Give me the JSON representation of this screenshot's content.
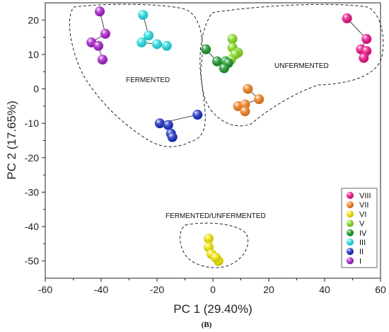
{
  "chart_data": {
    "type": "scatter",
    "xlabel": "PC 1 (29.40%)",
    "ylabel": "PC 2 (17.65%)",
    "xlim": [
      -60,
      60
    ],
    "ylim": [
      -55,
      25
    ],
    "x_ticks": [
      "-60",
      "-40",
      "-20",
      "0",
      "20",
      "40",
      "60"
    ],
    "y_ticks": [
      "20",
      "10",
      "0",
      "-10",
      "-20",
      "-30",
      "-40",
      "-50"
    ],
    "grid": false,
    "legend_position": "bottom-right",
    "panel_label": "(B)",
    "series": [
      {
        "name": "VIII",
        "color": "#ee1188",
        "points": [
          [
            48,
            20.5
          ],
          [
            55,
            14.5
          ],
          [
            53,
            11.5
          ],
          [
            55,
            11
          ],
          [
            54,
            9
          ]
        ]
      },
      {
        "name": "VII",
        "color": "#f5821f",
        "points": [
          [
            12.5,
            0
          ],
          [
            16.5,
            -3
          ],
          [
            9,
            -5
          ],
          [
            11.5,
            -4.5
          ],
          [
            11.5,
            -6.5
          ]
        ]
      },
      {
        "name": "VI",
        "color": "#f4e800",
        "points": [
          [
            -1.5,
            -43.5
          ],
          [
            -1.5,
            -46
          ],
          [
            -0.5,
            -48
          ],
          [
            2,
            -50
          ],
          [
            1,
            -49
          ]
        ]
      },
      {
        "name": "V",
        "color": "#88dd22",
        "points": [
          [
            7,
            14.5
          ],
          [
            7,
            12
          ],
          [
            9,
            10.5
          ],
          [
            8,
            10
          ],
          [
            6.5,
            8.5
          ]
        ]
      },
      {
        "name": "IV",
        "color": "#1a9a2a",
        "points": [
          [
            -2.5,
            11.5
          ],
          [
            1.5,
            8
          ],
          [
            4.5,
            8
          ],
          [
            5.5,
            7.5
          ],
          [
            4,
            6
          ]
        ]
      },
      {
        "name": "III",
        "color": "#22e0e6",
        "points": [
          [
            -25,
            21.5
          ],
          [
            -23,
            15.5
          ],
          [
            -25.5,
            13.5
          ],
          [
            -20,
            13
          ],
          [
            -16.5,
            12.5
          ]
        ]
      },
      {
        "name": "II",
        "color": "#1a2fc6",
        "points": [
          [
            -5.5,
            -7.5
          ],
          [
            -19,
            -10
          ],
          [
            -16,
            -10.5
          ],
          [
            -15,
            -13
          ],
          [
            -14.5,
            -14
          ]
        ]
      },
      {
        "name": "I",
        "color": "#aa22cc",
        "points": [
          [
            -40.5,
            22.5
          ],
          [
            -38.5,
            16
          ],
          [
            -43.5,
            13.5
          ],
          [
            -41,
            12.5
          ],
          [
            -39.5,
            8.5
          ]
        ]
      }
    ],
    "annotations": [
      "FERMENTED",
      "UNFERMENTED",
      "FERMENTED/UNFERMENTED"
    ],
    "legend_order": [
      "VIII",
      "VII",
      "VI",
      "V",
      "IV",
      "III",
      "II",
      "I"
    ]
  }
}
